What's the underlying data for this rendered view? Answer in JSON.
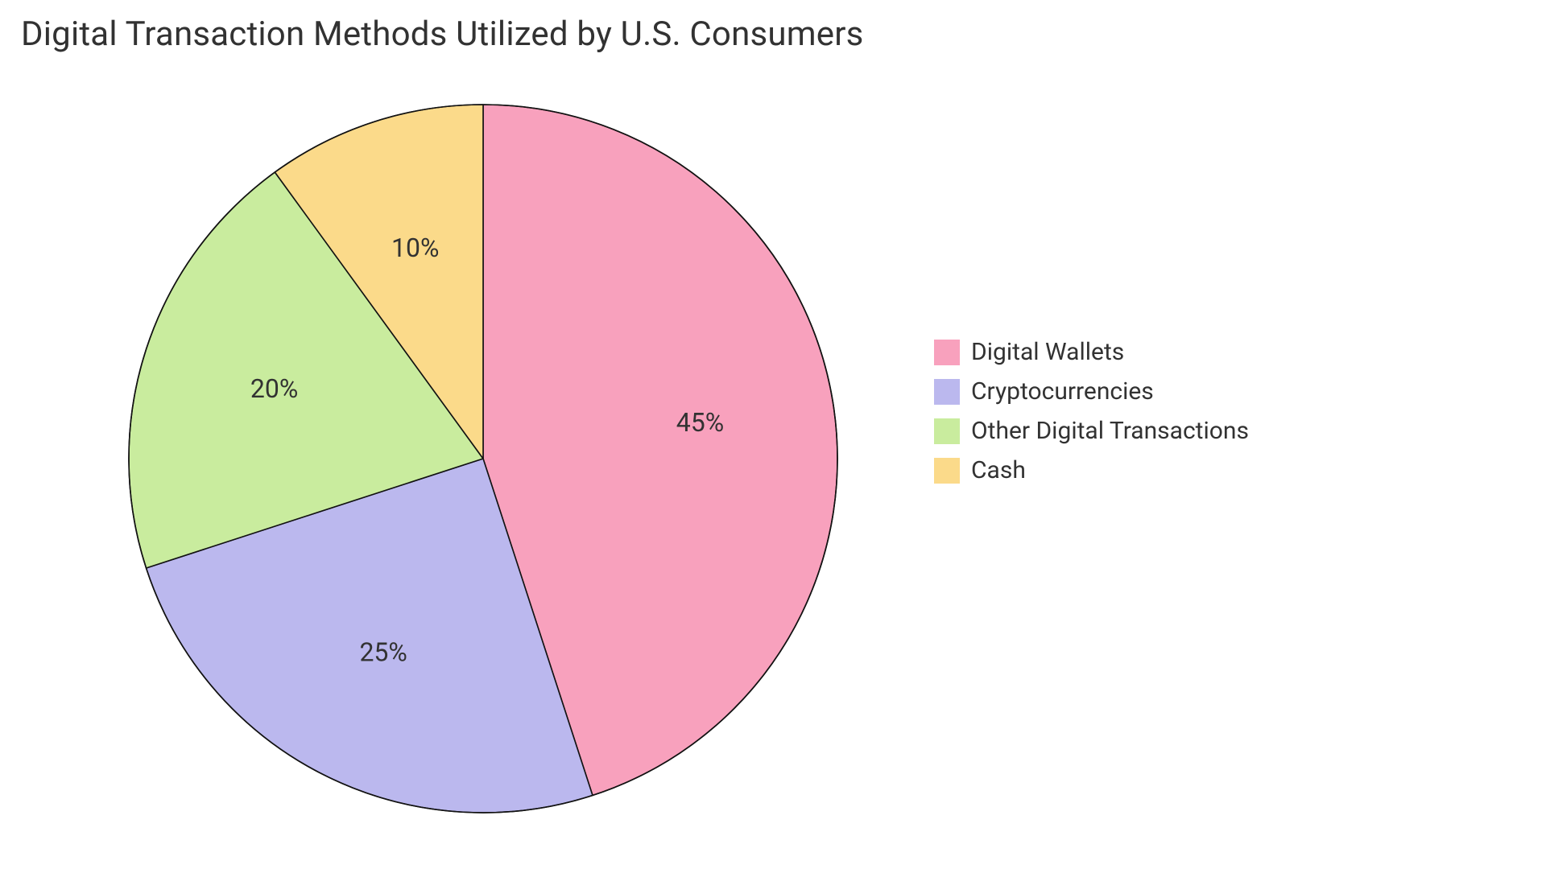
{
  "chart": {
    "type": "pie",
    "title": "Digital Transaction Methods Utilized by U.S. Consumers",
    "title_fontsize": 42,
    "title_color": "#323232",
    "background_color": "#ffffff",
    "stroke_color": "#121212",
    "stroke_width": 1.6,
    "label_fontsize": 32,
    "label_color": "#323232",
    "legend_fontsize": 30,
    "legend_swatch_size": 32,
    "radius": 440,
    "start_angle_deg": -90,
    "slices": [
      {
        "label": "Digital Wallets",
        "value": 45,
        "display": "45%",
        "color": "#f8a1bd"
      },
      {
        "label": "Cryptocurrencies",
        "value": 25,
        "display": "25%",
        "color": "#bbb8ee"
      },
      {
        "label": "Other Digital Transactions",
        "value": 20,
        "display": "20%",
        "color": "#c9ec9e"
      },
      {
        "label": "Cash",
        "value": 10,
        "display": "10%",
        "color": "#fbda8a"
      }
    ]
  }
}
